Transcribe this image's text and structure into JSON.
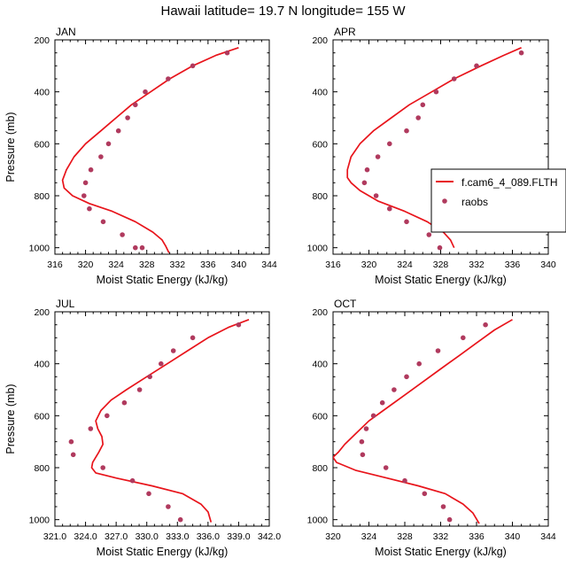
{
  "figure": {
    "title": "Hawaii  latitude= 19.7 N longitude= 155 W"
  },
  "colors": {
    "model_line": "#e8141b",
    "obs_marker": "#b03a5e",
    "axis": "#000000"
  },
  "legend": {
    "placement": "right of APR panel",
    "entries": [
      {
        "label": "f.cam6_4_089.FLTH",
        "kind": "line"
      },
      {
        "label": "raobs",
        "kind": "marker"
      }
    ]
  },
  "chart_data": [
    {
      "type": "line",
      "panel": "JAN",
      "title": "JAN",
      "xlabel": "Moist Static Energy (kJ/kg)",
      "ylabel": "Pressure (mb)",
      "xlim": [
        316,
        344
      ],
      "ylim": [
        200,
        1025
      ],
      "y_inverted": true,
      "xticks": [
        316,
        320,
        324,
        328,
        332,
        336,
        340,
        344
      ],
      "xtick_labels": [
        "316",
        "320",
        "324",
        "328",
        "332",
        "336",
        "340",
        "344"
      ],
      "yticks": [
        200,
        400,
        600,
        800,
        1000
      ],
      "ytick_labels": [
        "200",
        "400",
        "600",
        "800",
        "1000"
      ],
      "series": [
        {
          "name": "f.cam6_4_089.FLTH",
          "style": "line",
          "x": [
            340.0,
            337.0,
            334.0,
            331.0,
            328.5,
            326.0,
            324.0,
            322.0,
            320.0,
            318.5,
            317.5,
            317.0,
            317.2,
            318.3,
            320.5,
            323.5,
            326.5,
            328.8,
            330.0,
            330.5,
            330.9
          ],
          "p": [
            230,
            260,
            300,
            350,
            400,
            450,
            500,
            550,
            600,
            650,
            700,
            740,
            770,
            800,
            830,
            860,
            900,
            940,
            970,
            995,
            1020
          ]
        },
        {
          "name": "raobs",
          "style": "markers",
          "x": [
            338.5,
            334.0,
            330.8,
            327.8,
            326.5,
            325.5,
            324.3,
            323.0,
            322.0,
            320.7,
            320.0,
            319.8,
            320.5,
            322.3,
            324.8,
            326.5,
            327.4
          ],
          "p": [
            250,
            300,
            350,
            400,
            450,
            500,
            550,
            600,
            650,
            700,
            750,
            800,
            850,
            900,
            950,
            1000,
            1000
          ]
        }
      ]
    },
    {
      "type": "line",
      "panel": "APR",
      "title": "APR",
      "xlabel": "Moist Static Energy (kJ/kg)",
      "ylabel": "",
      "xlim": [
        316,
        340
      ],
      "ylim": [
        200,
        1025
      ],
      "y_inverted": true,
      "xticks": [
        316,
        320,
        324,
        328,
        332,
        336,
        340
      ],
      "xtick_labels": [
        "316",
        "320",
        "324",
        "328",
        "332",
        "336",
        "340"
      ],
      "yticks": [
        200,
        400,
        600,
        800,
        1000
      ],
      "ytick_labels": [
        "200",
        "400",
        "600",
        "800",
        "1000"
      ],
      "series": [
        {
          "name": "f.cam6_4_089.FLTH",
          "style": "line",
          "x": [
            337.0,
            335.0,
            332.5,
            329.5,
            327.0,
            324.5,
            322.5,
            320.5,
            319.0,
            318.0,
            317.6,
            317.6,
            318.0,
            319.0,
            321.0,
            324.0,
            326.5,
            328.3,
            329.1,
            329.5
          ],
          "p": [
            230,
            260,
            300,
            350,
            400,
            450,
            500,
            550,
            600,
            650,
            700,
            730,
            750,
            780,
            820,
            860,
            900,
            940,
            970,
            1000
          ]
        },
        {
          "name": "raobs",
          "style": "markers",
          "x": [
            337.0,
            332.0,
            329.5,
            327.5,
            326.0,
            325.5,
            324.2,
            322.3,
            321.0,
            319.8,
            319.5,
            320.8,
            322.3,
            324.2,
            326.7,
            327.9
          ],
          "p": [
            250,
            300,
            350,
            400,
            450,
            500,
            550,
            600,
            650,
            700,
            750,
            800,
            850,
            900,
            950,
            1000
          ]
        }
      ]
    },
    {
      "type": "line",
      "panel": "JUL",
      "title": "JUL",
      "xlabel": "Moist Static Energy (kJ/kg)",
      "ylabel": "Pressure (mb)",
      "xlim": [
        321,
        342
      ],
      "ylim": [
        200,
        1025
      ],
      "y_inverted": true,
      "xticks": [
        321,
        324,
        327,
        330,
        333,
        336,
        339,
        342
      ],
      "xtick_labels": [
        "321.0",
        "324.0",
        "327.0",
        "330.0",
        "333.0",
        "336.0",
        "339.0",
        "342.0"
      ],
      "yticks": [
        200,
        400,
        600,
        800,
        1000
      ],
      "ytick_labels": [
        "200",
        "400",
        "600",
        "800",
        "1000"
      ],
      "series": [
        {
          "name": "f.cam6_4_089.FLTH",
          "style": "line",
          "x": [
            340.0,
            338.0,
            336.0,
            334.0,
            332.0,
            330.0,
            328.0,
            326.5,
            325.5,
            325.0,
            325.2,
            325.6,
            325.7,
            325.3,
            324.7,
            324.6,
            325.0,
            327.0,
            330.5,
            333.5,
            335.3,
            336.0,
            336.3
          ],
          "p": [
            230,
            260,
            300,
            350,
            400,
            450,
            500,
            540,
            580,
            620,
            650,
            680,
            710,
            740,
            780,
            800,
            820,
            840,
            870,
            900,
            940,
            970,
            1010
          ]
        },
        {
          "name": "raobs",
          "style": "markers",
          "x": [
            339.0,
            334.5,
            332.6,
            331.4,
            330.3,
            329.3,
            327.8,
            326.1,
            324.5,
            322.6,
            322.8,
            325.7,
            328.6,
            330.2,
            332.1,
            333.3
          ],
          "p": [
            250,
            300,
            350,
            400,
            450,
            500,
            550,
            600,
            650,
            700,
            750,
            800,
            850,
            900,
            950,
            1000
          ]
        }
      ]
    },
    {
      "type": "line",
      "panel": "OCT",
      "title": "OCT",
      "xlabel": "Moist Static Energy (kJ/kg)",
      "ylabel": "",
      "xlim": [
        320,
        344
      ],
      "ylim": [
        200,
        1025
      ],
      "y_inverted": true,
      "xticks": [
        320,
        324,
        328,
        332,
        336,
        340,
        344
      ],
      "xtick_labels": [
        "320",
        "324",
        "328",
        "332",
        "336",
        "340",
        "344"
      ],
      "yticks": [
        200,
        400,
        600,
        800,
        1000
      ],
      "ytick_labels": [
        "200",
        "400",
        "600",
        "800",
        "1000"
      ],
      "series": [
        {
          "name": "f.cam6_4_089.FLTH",
          "style": "line",
          "x": [
            340.0,
            338.0,
            336.0,
            334.0,
            332.0,
            330.0,
            328.0,
            326.0,
            324.0,
            322.5,
            321.3,
            320.6,
            320.0,
            320.4,
            322.5,
            326.0,
            329.5,
            332.5,
            334.5,
            335.6,
            336.3
          ],
          "p": [
            230,
            270,
            320,
            370,
            420,
            470,
            520,
            570,
            620,
            670,
            710,
            740,
            760,
            780,
            810,
            840,
            870,
            900,
            940,
            975,
            1015
          ]
        },
        {
          "name": "raobs",
          "style": "markers",
          "x": [
            337.0,
            334.5,
            331.7,
            329.6,
            328.2,
            326.8,
            325.5,
            324.5,
            323.7,
            323.2,
            323.3,
            325.9,
            328.0,
            330.2,
            332.3,
            333.0
          ],
          "p": [
            250,
            300,
            350,
            400,
            450,
            500,
            550,
            600,
            650,
            700,
            750,
            800,
            850,
            900,
            950,
            1000
          ]
        }
      ]
    }
  ]
}
